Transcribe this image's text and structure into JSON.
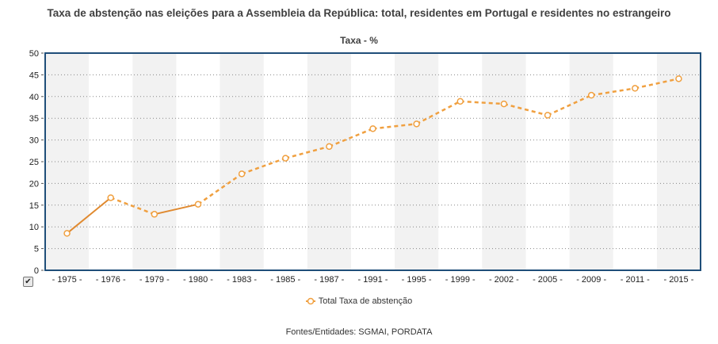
{
  "chart_data": {
    "type": "line",
    "title": "Taxa de abstenção nas eleições para a Assembleia da República: total, residentes em Portugal e residentes no estrangeiro",
    "subtitle": "Taxa - %",
    "categories": [
      "1975",
      "1976",
      "1979",
      "1980",
      "1983",
      "1985",
      "1987",
      "1991",
      "1995",
      "1999",
      "2002",
      "2005",
      "2009",
      "2011",
      "2015"
    ],
    "series": [
      {
        "name": "Total Taxa de abstenção",
        "values": [
          8.5,
          16.7,
          12.9,
          15.2,
          22.2,
          25.8,
          28.5,
          32.6,
          33.7,
          38.9,
          38.3,
          35.7,
          40.3,
          41.9,
          44.1
        ],
        "color": "#f0a040"
      }
    ],
    "solid_segments": [
      [
        0,
        1
      ],
      [
        2,
        3
      ]
    ],
    "ylim": [
      0,
      50
    ],
    "yticks": [
      0,
      5,
      10,
      15,
      20,
      25,
      30,
      35,
      40,
      45,
      50
    ],
    "xlabel": "",
    "ylabel": "",
    "grid": true,
    "legend": "bottom-center",
    "colors": {
      "line": "#f0a040",
      "solid_line": "#e08a30",
      "frame": "#1f4e79",
      "band": "#f2f2f2",
      "grid": "#888888"
    }
  },
  "source_text": "Fontes/Entidades: SGMAI, PORDATA",
  "checkbox_mark": "✔"
}
